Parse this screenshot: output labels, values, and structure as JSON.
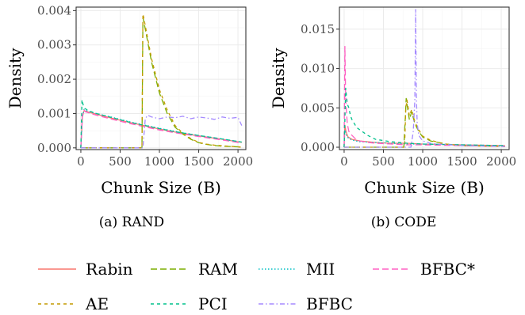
{
  "chart_data": [
    {
      "type": "line",
      "caption": "(a) RAND",
      "xlabel": "Chunk Size (B)",
      "ylabel": "Density",
      "xlim": [
        -60,
        2100
      ],
      "ylim": [
        -5e-05,
        0.0041
      ],
      "xticks": [
        0,
        500,
        1000,
        1500,
        2000
      ],
      "xtick_labels": [
        "0",
        "500",
        "1000",
        "1500",
        "2000"
      ],
      "yticks": [
        0,
        0.001,
        0.002,
        0.003,
        0.004
      ],
      "ytick_labels": [
        "0.000",
        "0.001",
        "0.002",
        "0.003",
        "0.004"
      ],
      "grid": true,
      "series": [
        {
          "name": "Rabin",
          "x": [
            0,
            20,
            40,
            60,
            100,
            200,
            400,
            600,
            800,
            1000,
            1200,
            1500,
            1800,
            2048
          ],
          "y": [
            0.0,
            0.0009,
            0.00108,
            0.00107,
            0.00104,
            0.00098,
            0.00086,
            0.00075,
            0.00065,
            0.00055,
            0.00046,
            0.00035,
            0.00025,
            0.00016
          ]
        },
        {
          "name": "RAM",
          "x": [
            0,
            750,
            778,
            790,
            800,
            900,
            1000,
            1100,
            1200,
            1300,
            1400,
            1500,
            1600,
            1700,
            1800,
            2000,
            2048
          ],
          "y": [
            0.0,
            0.0,
            0.0,
            0.0038,
            0.0037,
            0.0025,
            0.0016,
            0.001,
            0.0006,
            0.0004,
            0.00025,
            0.00015,
            0.0001,
            7e-05,
            5e-05,
            3e-05,
            2e-05
          ]
        },
        {
          "name": "MII",
          "x": [
            0,
            20,
            40,
            60,
            100,
            200,
            400,
            600,
            800,
            1000,
            1200,
            1500,
            1800,
            2048
          ],
          "y": [
            0.0,
            0.0009,
            0.00112,
            0.0011,
            0.00106,
            0.001,
            0.00089,
            0.00077,
            0.00067,
            0.00057,
            0.00048,
            0.00036,
            0.00026,
            0.00017
          ]
        },
        {
          "name": "BFBC*",
          "x": [
            0,
            20,
            40,
            60,
            100,
            200,
            400,
            600,
            800,
            1000,
            1200,
            1500,
            1800,
            2048
          ],
          "y": [
            0.0,
            0.00092,
            0.0011,
            0.00105,
            0.00102,
            0.00095,
            0.00083,
            0.00072,
            0.00062,
            0.00052,
            0.00044,
            0.00033,
            0.00023,
            0.00014
          ]
        },
        {
          "name": "AE",
          "x": [
            0,
            750,
            778,
            790,
            800,
            900,
            1000,
            1100,
            1200,
            1300,
            1400,
            1500,
            1600,
            1700,
            1800,
            2000,
            2048
          ],
          "y": [
            0.0,
            0.0,
            0.0,
            0.0039,
            0.0038,
            0.0026,
            0.0017,
            0.0011,
            0.00065,
            0.00042,
            0.00027,
            0.00016,
            0.00011,
            8e-05,
            6e-05,
            3e-05,
            2e-05
          ]
        },
        {
          "name": "PCI",
          "x": [
            0,
            15,
            30,
            50,
            100,
            200,
            400,
            600,
            800,
            1000,
            1200,
            1500,
            1800,
            2048
          ],
          "y": [
            0.0,
            0.0014,
            0.00125,
            0.00115,
            0.00108,
            0.001,
            0.00088,
            0.00076,
            0.00066,
            0.00056,
            0.00047,
            0.00036,
            0.00026,
            0.00017
          ]
        },
        {
          "name": "BFBC",
          "x": [
            0,
            790,
            820,
            850,
            900,
            1000,
            1100,
            1200,
            1300,
            1400,
            1500,
            1600,
            1700,
            1800,
            1900,
            2000,
            2048
          ],
          "y": [
            0.0,
            0.0,
            0.00085,
            0.00095,
            0.0009,
            0.00085,
            0.0009,
            0.00088,
            0.00092,
            0.00085,
            0.0009,
            0.00087,
            0.00083,
            0.0009,
            0.00086,
            0.00089,
            0.00065
          ]
        }
      ]
    },
    {
      "type": "line",
      "caption": "(b) CODE",
      "xlabel": "Chunk Size (B)",
      "ylabel": "Density",
      "xlim": [
        -60,
        2100
      ],
      "ylim": [
        -0.0003,
        0.0178
      ],
      "xticks": [
        0,
        500,
        1000,
        1500,
        2000
      ],
      "xtick_labels": [
        "0",
        "500",
        "1000",
        "1500",
        "2000"
      ],
      "yticks": [
        0,
        0.005,
        0.01,
        0.015
      ],
      "ytick_labels": [
        "0.000",
        "0.005",
        "0.010",
        "0.015"
      ],
      "grid": true,
      "series": [
        {
          "name": "Rabin",
          "x": [
            0,
            10,
            20,
            30,
            50,
            100,
            200,
            400,
            600,
            800,
            1000,
            1500,
            2048
          ],
          "y": [
            0.0,
            0.0028,
            0.0022,
            0.0018,
            0.0013,
            0.001,
            0.0008,
            0.0006,
            0.0005,
            0.0005,
            0.0004,
            0.0003,
            0.0002
          ]
        },
        {
          "name": "RAM",
          "x": [
            0,
            700,
            760,
            780,
            790,
            800,
            830,
            860,
            900,
            950,
            1000,
            1100,
            1200,
            1300,
            1500,
            2048
          ],
          "y": [
            0.0,
            0.0,
            0.0,
            0.004,
            0.0062,
            0.0055,
            0.0035,
            0.0045,
            0.003,
            0.002,
            0.0013,
            0.0008,
            0.0006,
            0.0004,
            0.0002,
            0.0001
          ]
        },
        {
          "name": "MII",
          "x": [
            0,
            10,
            20,
            30,
            50,
            100,
            200,
            400,
            600,
            800,
            1000,
            1500,
            2048
          ],
          "y": [
            0.0,
            0.0022,
            0.0018,
            0.0015,
            0.0012,
            0.0009,
            0.0007,
            0.0006,
            0.0005,
            0.0004,
            0.0004,
            0.0003,
            0.0002
          ]
        },
        {
          "name": "BFBC*",
          "x": [
            0,
            10,
            20,
            30,
            40,
            60,
            100,
            150,
            200,
            300,
            400,
            600,
            800,
            1000,
            1500,
            2048
          ],
          "y": [
            0.0,
            0.0128,
            0.006,
            0.0045,
            0.003,
            0.002,
            0.0015,
            0.001,
            0.0008,
            0.0006,
            0.0005,
            0.0004,
            0.0003,
            0.0003,
            0.0002,
            0.0001
          ]
        },
        {
          "name": "AE",
          "x": [
            0,
            700,
            770,
            785,
            800,
            830,
            860,
            900,
            950,
            1000,
            1100,
            1200,
            1300,
            1500,
            2048
          ],
          "y": [
            0.0,
            0.0,
            0.0,
            0.005,
            0.006,
            0.004,
            0.0048,
            0.0032,
            0.0022,
            0.0014,
            0.0009,
            0.0006,
            0.0004,
            0.0002,
            0.0001
          ]
        },
        {
          "name": "PCI",
          "x": [
            0,
            10,
            20,
            30,
            40,
            60,
            80,
            100,
            130,
            160,
            200,
            300,
            400,
            600,
            800,
            1000,
            1500,
            2048
          ],
          "y": [
            0.0,
            0.0035,
            0.0075,
            0.0065,
            0.0055,
            0.005,
            0.004,
            0.0035,
            0.003,
            0.0025,
            0.0022,
            0.0015,
            0.001,
            0.0007,
            0.0005,
            0.0004,
            0.0003,
            0.0002
          ]
        },
        {
          "name": "BFBC",
          "x": [
            0,
            850,
            880,
            900,
            910,
            920,
            930,
            950,
            1000,
            1100,
            1200,
            1500,
            2048
          ],
          "y": [
            0.0,
            0.0,
            0.002,
            0.006,
            0.0175,
            0.006,
            0.003,
            0.0015,
            0.0008,
            0.0005,
            0.0004,
            0.0002,
            0.0001
          ]
        }
      ]
    }
  ],
  "legend": [
    {
      "label": "Rabin",
      "color": "#f8766d",
      "dash": "solid"
    },
    {
      "label": "RAM",
      "color": "#7cae00",
      "dash": "longdash"
    },
    {
      "label": "MII",
      "color": "#00bfc4",
      "dash": "dotted"
    },
    {
      "label": "BFBC*",
      "color": "#ff61c3",
      "dash": "longdash"
    },
    {
      "label": "AE",
      "color": "#c49a00",
      "dash": "dashed"
    },
    {
      "label": "PCI",
      "color": "#00c08b",
      "dash": "dashed"
    },
    {
      "label": "BFBC",
      "color": "#a58aff",
      "dash": "dotdash"
    }
  ],
  "colors": {
    "panel_bg": "#ffffff",
    "grid_major": "#ebebeb",
    "grid_minor": "#f5f5f5",
    "border": "#333333"
  }
}
